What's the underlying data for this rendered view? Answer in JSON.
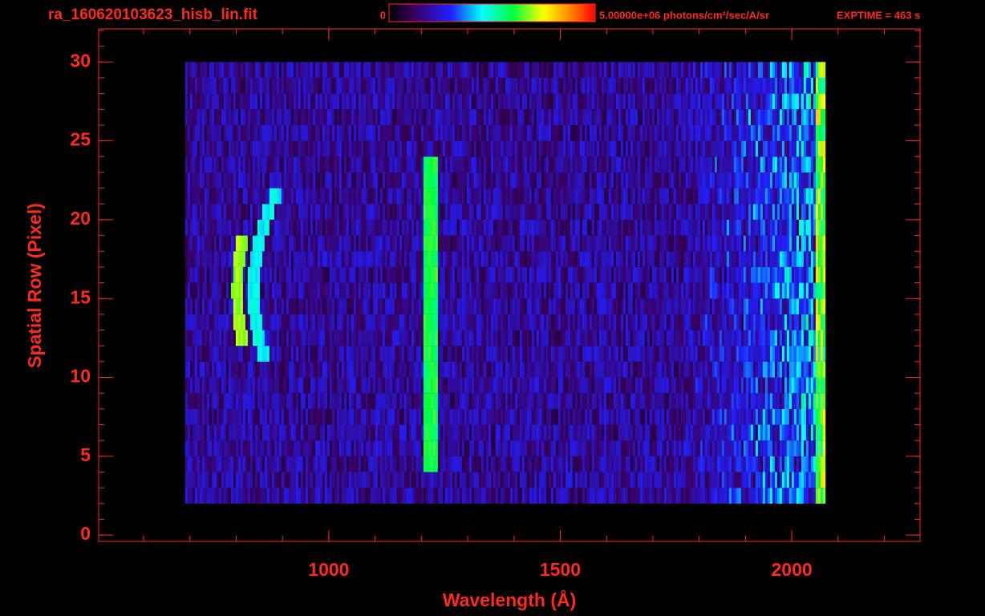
{
  "chart_data": {
    "type": "spectral-image",
    "title": "ra_160620103623_hisb_lin.fit",
    "colorbar_min_label": "0",
    "colorbar_max_label": "5.00000e+06 photons/cm²/sec/A/sr",
    "exptime_label": "EXPTIME = 463 s",
    "x_label": "Wavelength (Å)",
    "y_label": "Spatial Row (Pixel)",
    "xlim": [
      503,
      2277
    ],
    "xticks": [
      1000,
      1500,
      2000
    ],
    "xminorticks": [
      600,
      700,
      800,
      900,
      1000,
      1100,
      1200,
      1300,
      1400,
      1500,
      1600,
      1700,
      1800,
      1900,
      2000,
      2100,
      2200
    ],
    "ylim": [
      -0.4,
      32.1
    ],
    "yticks": [
      0,
      5,
      10,
      15,
      20,
      25,
      30
    ],
    "yminorticks": [
      0,
      1,
      2,
      3,
      4,
      5,
      6,
      7,
      8,
      9,
      10,
      11,
      12,
      13,
      14,
      15,
      16,
      17,
      18,
      19,
      20,
      21,
      22,
      23,
      24,
      25,
      26,
      27,
      28,
      29,
      30,
      31,
      32
    ],
    "color": "#ff2a1a"
  }
}
